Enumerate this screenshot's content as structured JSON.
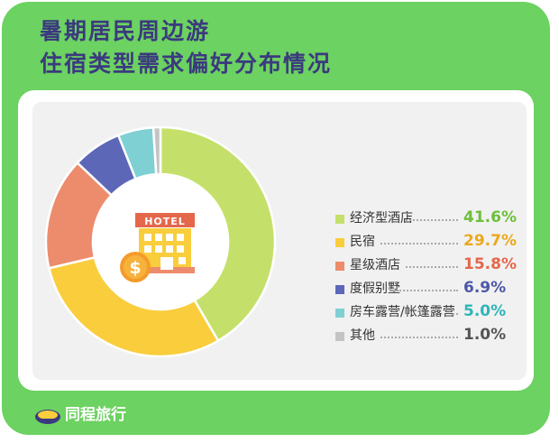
{
  "title": {
    "line1": "暑期居民周边游",
    "line2": "住宿类型需求偏好分布情况"
  },
  "icon_label": "HOTEL",
  "brand": {
    "name": "同程旅行"
  },
  "colors": {
    "frame": "#6cd261",
    "title": "#3b3a7e"
  },
  "chart_data": {
    "type": "donut",
    "unit": "%",
    "categories": [
      "经济型酒店",
      "民宿",
      "星级酒店",
      "度假别墅",
      "房车露营/帐篷露营",
      "其他"
    ],
    "values": [
      41.6,
      29.7,
      15.8,
      6.9,
      5.0,
      1.0
    ],
    "value_labels": [
      "41.6%",
      "29.7%",
      "15.8%",
      "6.9%",
      "5.0%",
      "1.0%"
    ],
    "colors": [
      "#c5e06a",
      "#f9cd3c",
      "#ec8c6d",
      "#5d67b8",
      "#7fd0d3",
      "#c4c4c4"
    ],
    "value_colors": [
      "#6cbf3b",
      "#eaa91c",
      "#e5674b",
      "#4d57a8",
      "#2fb4b8",
      "#555555"
    ],
    "legend_position": "right",
    "start_angle": "top, clockwise"
  }
}
